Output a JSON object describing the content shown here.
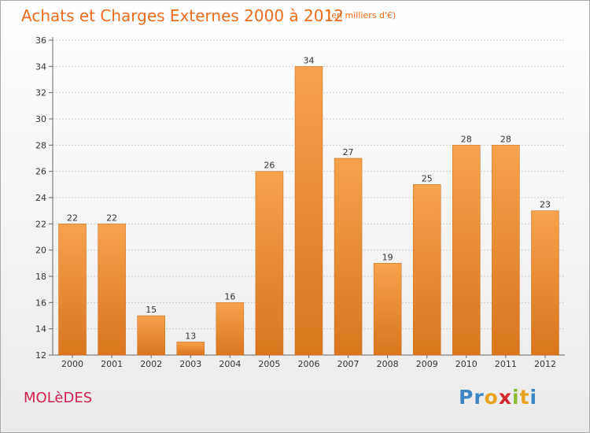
{
  "header": {
    "title": "Achats et Charges Externes 2000 à 2012",
    "unit": "(en milliers d'€)"
  },
  "footer": {
    "commune": "MOLèDES",
    "logo": {
      "letters": [
        "P",
        "r",
        "o",
        "x",
        "i",
        "t",
        "i"
      ],
      "colors": [
        "#3f86c4",
        "#3f86c4",
        "#e8a21e",
        "#d7262b",
        "#8cbb33",
        "#e8a21e",
        "#3f86c4"
      ]
    }
  },
  "colors": {
    "bar_top": "#f6a24c",
    "bar_bottom": "#d9761e",
    "axis": "#666666",
    "grid": "#cccccc"
  },
  "chart_data": {
    "type": "bar",
    "title": "Achats et Charges Externes 2000 à 2012",
    "subtitle": "(en milliers d'€)",
    "xlabel": "",
    "ylabel": "",
    "categories": [
      "2000",
      "2001",
      "2002",
      "2003",
      "2004",
      "2005",
      "2006",
      "2007",
      "2008",
      "2009",
      "2010",
      "2011",
      "2012"
    ],
    "values": [
      22,
      22,
      15,
      13,
      16,
      26,
      34,
      27,
      19,
      25,
      28,
      28,
      23
    ],
    "ylim": [
      12,
      36
    ],
    "yticks": [
      12,
      14,
      16,
      18,
      20,
      22,
      24,
      26,
      28,
      30,
      32,
      34,
      36
    ],
    "grid": true,
    "legend": "none"
  }
}
